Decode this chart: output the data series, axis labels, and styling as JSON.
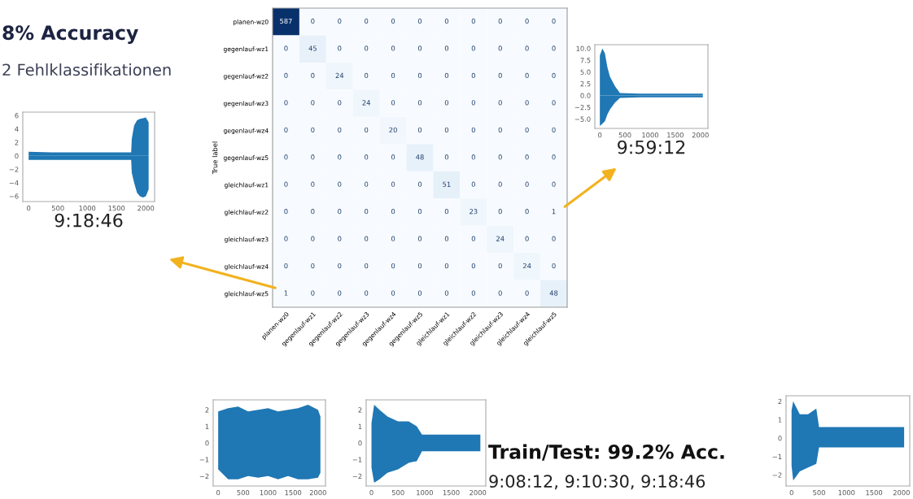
{
  "chart_data": [
    {
      "type": "other",
      "annotations": [
        "8% Accuracy",
        "2 Fehlklassifikationen"
      ]
    },
    {
      "type": "heatmap",
      "ylabel": "True label",
      "data_labels": true,
      "grid": false,
      "categories": [
        "planen-wz0",
        "gegenlauf-wz1",
        "gegenlauf-wz2",
        "gegenlauf-wz3",
        "gegenlauf-wz4",
        "gegenlauf-wz5",
        "gleichlauf-wz1",
        "gleichlauf-wz2",
        "gleichlauf-wz3",
        "gleichlauf-wz4",
        "gleichlauf-wz5"
      ],
      "y_categories": [
        "planen-wz0",
        "gegenlauf-wz1",
        "gegenlauf-wz2",
        "gegenlauf-wz3",
        "gegenlauf-wz4",
        "gegenlauf-wz5",
        "gleichlauf-wz1",
        "gleichlauf-wz2",
        "gleichlauf-wz3",
        "gleichlauf-wz4",
        "gleichlauf-wz5"
      ],
      "cells": [
        [
          587,
          0,
          0,
          0,
          0,
          0,
          0,
          0,
          0,
          0,
          0
        ],
        [
          0,
          45,
          0,
          0,
          0,
          0,
          0,
          0,
          0,
          0,
          0
        ],
        [
          0,
          0,
          24,
          0,
          0,
          0,
          0,
          0,
          0,
          0,
          0
        ],
        [
          0,
          0,
          0,
          24,
          0,
          0,
          0,
          0,
          0,
          0,
          0
        ],
        [
          0,
          0,
          0,
          0,
          20,
          0,
          0,
          0,
          0,
          0,
          0
        ],
        [
          0,
          0,
          0,
          0,
          0,
          48,
          0,
          0,
          0,
          0,
          0
        ],
        [
          0,
          0,
          0,
          0,
          0,
          0,
          51,
          0,
          0,
          0,
          0
        ],
        [
          0,
          0,
          0,
          0,
          0,
          0,
          0,
          23,
          0,
          0,
          1
        ],
        [
          0,
          0,
          0,
          0,
          0,
          0,
          0,
          0,
          24,
          0,
          0
        ],
        [
          0,
          0,
          0,
          0,
          0,
          0,
          0,
          0,
          0,
          24,
          0
        ],
        [
          1,
          0,
          0,
          0,
          0,
          0,
          0,
          0,
          0,
          0,
          48
        ]
      ]
    },
    {
      "type": "line",
      "xlabel": "9:18:46",
      "grid": false,
      "xlim": [
        -100,
        2150
      ],
      "ylim": [
        -6.8,
        6.5
      ],
      "xticks": [
        0,
        500,
        1000,
        1500,
        2000
      ],
      "yticks": [
        {
          "value": -6,
          "label": "−6"
        },
        {
          "value": -4,
          "label": "−4"
        },
        {
          "value": -2,
          "label": "−2"
        },
        0,
        2,
        4,
        6
      ],
      "series": [
        {
          "type": "area",
          "color": "#1f77b4",
          "x": [
            0,
            400,
            800,
            1200,
            1600,
            1750,
            1760,
            1800,
            1850,
            1900,
            1950,
            2000,
            2048
          ],
          "values": [
            0.6,
            0.5,
            0.5,
            0.5,
            0.5,
            0.5,
            2.5,
            4.5,
            5.3,
            5.5,
            5.6,
            5.7,
            5
          ]
        },
        {
          "type": "area",
          "color": "#1f77b4",
          "x": [
            0,
            400,
            800,
            1200,
            1600,
            1750,
            1760,
            1800,
            1850,
            1900,
            1950,
            2000,
            2048
          ],
          "values": [
            -0.6,
            -0.6,
            -0.6,
            -0.6,
            -0.6,
            -0.6,
            -2.5,
            -4,
            -5.5,
            -6,
            -6.2,
            -6,
            -5
          ]
        }
      ]
    },
    {
      "type": "line",
      "xlabel": "9:59:12",
      "grid": false,
      "xlim": [
        -100,
        2150
      ],
      "ylim": [
        -7,
        10.8
      ],
      "xticks": [
        0,
        500,
        1000,
        1500,
        2000
      ],
      "yticks": [
        {
          "value": -5,
          "label": "−5.0"
        },
        {
          "value": -2.5,
          "label": "−2.5"
        },
        {
          "value": 0,
          "label": "0.0"
        },
        {
          "value": 2.5,
          "label": "2.5"
        },
        {
          "value": 5,
          "label": "5.0"
        },
        {
          "value": 7.5,
          "label": "7.5"
        },
        {
          "value": 10,
          "label": "10.0"
        }
      ],
      "series": [
        {
          "type": "area",
          "color": "#1f77b4",
          "x": [
            0,
            50,
            100,
            150,
            200,
            300,
            400,
            800,
            1200,
            1600,
            2048
          ],
          "values": [
            8.5,
            10,
            9,
            6,
            4,
            2,
            0.5,
            0.4,
            0.4,
            0.4,
            0.4
          ]
        },
        {
          "type": "area",
          "color": "#1f77b4",
          "x": [
            0,
            50,
            100,
            150,
            200,
            300,
            400,
            800,
            1200,
            1600,
            2048
          ],
          "values": [
            -6.5,
            -6,
            -5.5,
            -4,
            -3,
            -1.5,
            -0.5,
            -0.4,
            -0.4,
            -0.4,
            -0.4
          ]
        }
      ]
    },
    {
      "type": "line",
      "grid": false,
      "xlim": [
        -100,
        2150
      ],
      "ylim": [
        -2.6,
        2.6
      ],
      "xticks": [
        0,
        500,
        1000,
        1500,
        2000
      ],
      "yticks": [
        {
          "value": -2,
          "label": "−2"
        },
        {
          "value": -1,
          "label": "−1"
        },
        0,
        1,
        2
      ],
      "series": [
        {
          "type": "area",
          "color": "#1f77b4",
          "x": [
            0,
            200,
            400,
            600,
            800,
            1000,
            1200,
            1400,
            1600,
            1800,
            2000,
            2048
          ],
          "values": [
            1.9,
            2.1,
            2.2,
            1.9,
            2.0,
            2.1,
            1.9,
            2.0,
            2.1,
            2.3,
            2.0,
            1.6
          ]
        },
        {
          "type": "area",
          "color": "#1f77b4",
          "x": [
            0,
            200,
            400,
            600,
            800,
            1000,
            1200,
            1400,
            1600,
            1800,
            2000,
            2048
          ],
          "values": [
            -1.6,
            -2.2,
            -2.2,
            -2.0,
            -2.1,
            -2.0,
            -2.2,
            -2.0,
            -2.2,
            -2.2,
            -2.1,
            -1.8
          ]
        }
      ]
    },
    {
      "type": "line",
      "grid": false,
      "xlim": [
        -100,
        2150
      ],
      "ylim": [
        -2.6,
        2.6
      ],
      "xticks": [
        0,
        500,
        1000,
        1500,
        2000
      ],
      "yticks": [
        {
          "value": -2,
          "label": "−2"
        },
        {
          "value": -1,
          "label": "−1"
        },
        0,
        1,
        2
      ],
      "series": [
        {
          "type": "area",
          "color": "#1f77b4",
          "x": [
            0,
            50,
            150,
            300,
            500,
            700,
            850,
            950,
            1200,
            1600,
            2048
          ],
          "values": [
            1.2,
            2.3,
            2.0,
            1.6,
            1.3,
            1.3,
            1.0,
            0.5,
            0.5,
            0.5,
            0.5
          ]
        },
        {
          "type": "area",
          "color": "#1f77b4",
          "x": [
            0,
            50,
            150,
            300,
            500,
            700,
            850,
            950,
            1200,
            1600,
            2048
          ],
          "values": [
            -1.5,
            -2.4,
            -2.2,
            -1.8,
            -1.6,
            -1.2,
            -1.1,
            -0.5,
            -0.5,
            -0.5,
            -0.5
          ]
        }
      ]
    },
    {
      "type": "other",
      "annotations": [
        "Train/Test: 99.2% Acc.",
        "9:08:12, 9:10:30, 9:18:46"
      ]
    },
    {
      "type": "line",
      "grid": false,
      "xlim": [
        -100,
        2150
      ],
      "ylim": [
        -2.6,
        2.3
      ],
      "xticks": [
        0,
        500,
        1000,
        1500,
        2000
      ],
      "yticks": [
        {
          "value": -2,
          "label": "−2"
        },
        {
          "value": -1,
          "label": "−1"
        },
        0,
        1,
        2
      ],
      "series": [
        {
          "type": "area",
          "color": "#1f77b4",
          "x": [
            0,
            30,
            150,
            300,
            450,
            500,
            800,
            1200,
            1600,
            2048
          ],
          "values": [
            1.5,
            2.0,
            1.3,
            1.3,
            1.6,
            0.6,
            0.6,
            0.6,
            0.6,
            0.6
          ]
        },
        {
          "type": "area",
          "color": "#1f77b4",
          "x": [
            0,
            30,
            150,
            300,
            450,
            500,
            800,
            1200,
            1600,
            2048
          ],
          "values": [
            -1.5,
            -2.3,
            -1.8,
            -1.6,
            -1.4,
            -0.5,
            -0.5,
            -0.5,
            -0.5,
            -0.5
          ]
        }
      ]
    }
  ]
}
